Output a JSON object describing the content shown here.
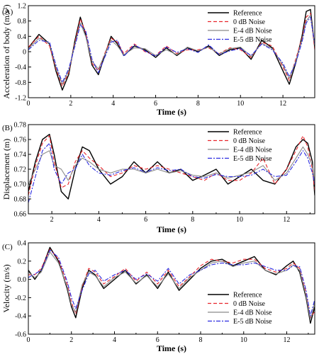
{
  "legend_labels": [
    "Reference",
    "0 dB Noise",
    "E-4 dB Noise",
    "E-5 dB Noise"
  ],
  "series_styles": [
    {
      "color": "#000000",
      "dash": ""
    },
    {
      "color": "#e8242b",
      "dash": "5,3"
    },
    {
      "color": "#8a8a8a",
      "dash": ""
    },
    {
      "color": "#2a2ae0",
      "dash": "6,2,2,2"
    }
  ],
  "chart_data": [
    {
      "type": "line",
      "panel_label": "(A)",
      "xlabel": "Time (s)",
      "ylabel": "Acceleration of body (m/s²)",
      "xlim": [
        0,
        13.5
      ],
      "ylim": [
        -1.2,
        1.2
      ],
      "xticks": [
        0,
        2,
        4,
        6,
        8,
        10,
        12
      ],
      "yticks": [
        -1.2,
        -0.8,
        -0.4,
        0,
        0.4,
        0.8,
        1.2
      ],
      "ytick_labels": [
        "-1.2",
        "-0.8",
        "-0.4",
        "0",
        "0.4",
        "0.8",
        "1.2"
      ],
      "legend_position": "top-right",
      "x": [
        0,
        0.5,
        1.0,
        1.3,
        1.6,
        1.9,
        2.2,
        2.45,
        2.7,
        3.0,
        3.3,
        3.6,
        3.9,
        4.2,
        4.5,
        5.0,
        5.5,
        6.0,
        6.5,
        7.0,
        7.5,
        8.0,
        8.5,
        9.0,
        9.5,
        10.0,
        10.5,
        11.0,
        11.5,
        12.0,
        12.3,
        12.6,
        12.9,
        13.1,
        13.3,
        13.5
      ],
      "series": [
        {
          "name": "Reference",
          "values": [
            0.1,
            0.45,
            0.2,
            -0.5,
            -1.0,
            -0.6,
            0.3,
            0.9,
            0.45,
            -0.35,
            -0.6,
            -0.1,
            0.4,
            0.2,
            -0.1,
            0.15,
            0.05,
            -0.15,
            0.1,
            -0.1,
            0.1,
            0.0,
            0.15,
            -0.1,
            0.05,
            0.1,
            -0.2,
            0.3,
            0.1,
            -0.5,
            -0.85,
            -0.3,
            0.4,
            1.05,
            1.1,
            0.1
          ]
        },
        {
          "name": "0 dB Noise",
          "values": [
            0.12,
            0.4,
            0.15,
            -0.45,
            -0.9,
            -0.55,
            0.25,
            0.85,
            0.5,
            -0.3,
            -0.5,
            -0.05,
            0.35,
            0.25,
            -0.05,
            0.2,
            0.0,
            -0.1,
            0.15,
            -0.05,
            0.05,
            0.05,
            0.1,
            -0.05,
            0.1,
            0.05,
            -0.15,
            0.25,
            0.15,
            -0.4,
            -0.75,
            -0.2,
            0.35,
            0.9,
            1.0,
            0.05
          ]
        },
        {
          "name": "E-4 dB Noise",
          "values": [
            0.08,
            0.35,
            0.22,
            -0.4,
            -0.85,
            -0.5,
            0.2,
            0.75,
            0.4,
            -0.25,
            -0.45,
            -0.08,
            0.3,
            0.15,
            -0.08,
            0.1,
            0.08,
            -0.1,
            0.05,
            -0.08,
            0.12,
            0.02,
            0.12,
            -0.06,
            0.08,
            0.12,
            -0.12,
            0.22,
            0.08,
            -0.35,
            -0.7,
            -0.25,
            0.3,
            0.8,
            0.95,
            0.15
          ]
        },
        {
          "name": "E-5 dB Noise",
          "values": [
            0.05,
            0.3,
            0.25,
            -0.35,
            -0.8,
            -0.45,
            0.15,
            0.7,
            0.55,
            -0.2,
            -0.55,
            -0.15,
            0.25,
            0.3,
            -0.12,
            0.18,
            0.02,
            -0.12,
            0.12,
            -0.02,
            0.08,
            -0.02,
            0.18,
            -0.08,
            0.02,
            0.08,
            -0.1,
            0.2,
            0.05,
            -0.3,
            -0.65,
            -0.3,
            0.25,
            0.75,
            0.9,
            0.2
          ]
        }
      ]
    },
    {
      "type": "line",
      "panel_label": "(B)",
      "xlabel": "Time (s)",
      "ylabel": "Displacement (m)",
      "xlim": [
        1,
        13.2
      ],
      "ylim": [
        0.66,
        0.78
      ],
      "xticks": [
        2,
        4,
        6,
        8,
        10,
        12
      ],
      "yticks": [
        0.66,
        0.68,
        0.7,
        0.72,
        0.74,
        0.76,
        0.78
      ],
      "ytick_labels": [
        "0.66",
        "0.68",
        "0.70",
        "0.72",
        "0.74",
        "0.76",
        "0.78"
      ],
      "legend_position": "top-right",
      "x": [
        1.0,
        1.3,
        1.6,
        1.9,
        2.1,
        2.4,
        2.7,
        3.0,
        3.3,
        3.6,
        4.0,
        4.5,
        5.0,
        5.5,
        6.0,
        6.5,
        7.0,
        7.5,
        8.0,
        8.5,
        9.0,
        9.5,
        10.0,
        10.5,
        11.0,
        11.5,
        12.0,
        12.4,
        12.7,
        12.9,
        13.1,
        13.2
      ],
      "series": [
        {
          "name": "Reference",
          "values": [
            0.69,
            0.73,
            0.76,
            0.767,
            0.74,
            0.69,
            0.68,
            0.72,
            0.75,
            0.745,
            0.72,
            0.7,
            0.71,
            0.73,
            0.715,
            0.73,
            0.715,
            0.72,
            0.705,
            0.712,
            0.72,
            0.7,
            0.71,
            0.72,
            0.705,
            0.7,
            0.72,
            0.75,
            0.76,
            0.755,
            0.73,
            0.685
          ]
        },
        {
          "name": "0 dB Noise",
          "values": [
            0.685,
            0.725,
            0.755,
            0.765,
            0.73,
            0.695,
            0.7,
            0.73,
            0.745,
            0.735,
            0.725,
            0.71,
            0.715,
            0.725,
            0.72,
            0.725,
            0.72,
            0.715,
            0.71,
            0.705,
            0.715,
            0.705,
            0.705,
            0.715,
            0.735,
            0.7,
            0.72,
            0.745,
            0.765,
            0.75,
            0.72,
            0.69
          ]
        },
        {
          "name": "E-4 dB Noise",
          "values": [
            0.7,
            0.72,
            0.74,
            0.745,
            0.725,
            0.72,
            0.705,
            0.725,
            0.735,
            0.73,
            0.72,
            0.715,
            0.72,
            0.72,
            0.715,
            0.72,
            0.715,
            0.718,
            0.712,
            0.71,
            0.715,
            0.708,
            0.712,
            0.716,
            0.725,
            0.705,
            0.715,
            0.735,
            0.75,
            0.74,
            0.725,
            0.7
          ]
        },
        {
          "name": "E-5 dB Noise",
          "values": [
            0.675,
            0.71,
            0.745,
            0.755,
            0.72,
            0.7,
            0.715,
            0.72,
            0.74,
            0.725,
            0.715,
            0.712,
            0.718,
            0.722,
            0.716,
            0.722,
            0.718,
            0.72,
            0.71,
            0.708,
            0.713,
            0.71,
            0.71,
            0.712,
            0.72,
            0.71,
            0.712,
            0.73,
            0.745,
            0.735,
            0.715,
            0.7
          ]
        }
      ]
    },
    {
      "type": "line",
      "panel_label": "(C)",
      "xlabel": "Time (s)",
      "ylabel": "Velocity (m/s)",
      "xlim": [
        0,
        13.3
      ],
      "ylim": [
        -0.6,
        0.4
      ],
      "xticks": [
        0,
        2,
        4,
        6,
        8,
        10,
        12
      ],
      "yticks": [
        -0.6,
        -0.4,
        -0.2,
        0,
        0.2,
        0.4
      ],
      "ytick_labels": [
        "-0.6",
        "-0.4",
        "-0.2",
        "0.0",
        "0.2",
        "0.4"
      ],
      "legend_position": "bottom-right",
      "x": [
        0,
        0.3,
        0.6,
        1.0,
        1.4,
        1.8,
        2.0,
        2.2,
        2.5,
        2.8,
        3.1,
        3.5,
        4.0,
        4.5,
        5.0,
        5.5,
        6.0,
        6.5,
        7.0,
        7.5,
        8.0,
        8.5,
        9.0,
        9.5,
        10.0,
        10.5,
        11.0,
        11.5,
        12.0,
        12.3,
        12.6,
        12.9,
        13.1,
        13.3
      ],
      "series": [
        {
          "name": "Reference",
          "values": [
            0.1,
            0.0,
            0.1,
            0.35,
            0.2,
            -0.1,
            -0.3,
            -0.42,
            -0.1,
            0.1,
            0.05,
            -0.1,
            0.0,
            0.1,
            -0.05,
            0.05,
            -0.1,
            0.08,
            -0.12,
            0.0,
            0.12,
            0.2,
            0.22,
            0.15,
            0.2,
            0.25,
            0.1,
            0.05,
            0.15,
            0.2,
            0.08,
            -0.2,
            -0.48,
            -0.3
          ]
        },
        {
          "name": "0 dB Noise",
          "values": [
            0.05,
            0.05,
            0.12,
            0.33,
            0.22,
            -0.05,
            -0.25,
            -0.38,
            -0.08,
            0.12,
            0.08,
            -0.05,
            0.03,
            0.12,
            -0.02,
            0.08,
            -0.05,
            0.1,
            -0.08,
            0.03,
            0.15,
            0.22,
            0.2,
            0.18,
            0.22,
            0.22,
            0.12,
            0.08,
            0.12,
            0.18,
            0.12,
            -0.15,
            -0.42,
            -0.35
          ]
        },
        {
          "name": "E-4 dB Noise",
          "values": [
            0.08,
            0.02,
            0.08,
            0.3,
            0.18,
            -0.08,
            -0.28,
            -0.36,
            -0.06,
            0.08,
            0.04,
            -0.08,
            0.02,
            0.08,
            -0.04,
            0.04,
            -0.08,
            0.06,
            -0.1,
            0.02,
            0.1,
            0.18,
            0.2,
            0.14,
            0.18,
            0.2,
            0.1,
            0.06,
            0.1,
            0.16,
            0.1,
            -0.18,
            -0.45,
            -0.25
          ]
        },
        {
          "name": "E-5 dB Noise",
          "values": [
            0.02,
            0.06,
            0.1,
            0.32,
            0.24,
            -0.02,
            -0.2,
            -0.32,
            -0.12,
            0.06,
            0.1,
            -0.02,
            0.05,
            0.1,
            0.0,
            0.06,
            -0.02,
            0.12,
            -0.05,
            0.05,
            0.1,
            0.16,
            0.18,
            0.16,
            0.16,
            0.18,
            0.14,
            0.1,
            0.1,
            0.15,
            0.14,
            -0.12,
            -0.4,
            -0.22
          ]
        }
      ]
    }
  ]
}
